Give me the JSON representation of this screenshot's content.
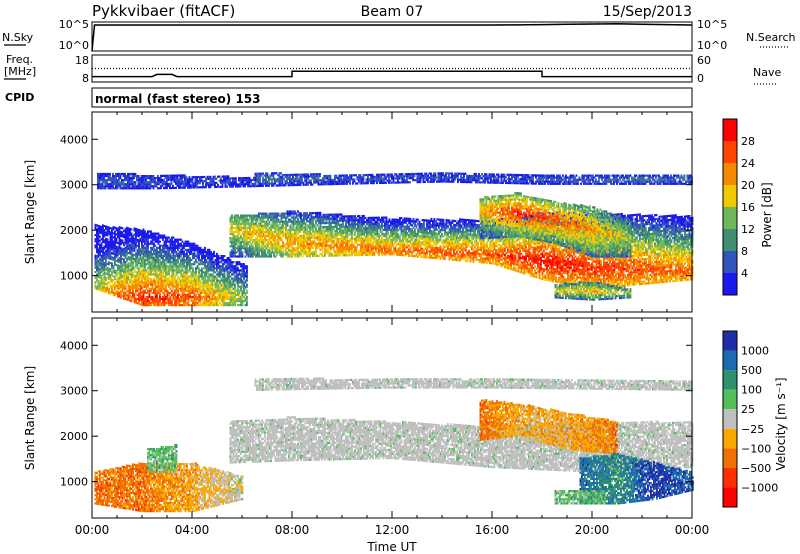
{
  "header": {
    "station": "Pykkvibaer (fitACF)",
    "beam": "Beam 07",
    "date": "15/Sep/2013",
    "cpid_label": "CPID",
    "cpid_value": "normal (fast stereo) 153"
  },
  "chart_data": [
    {
      "type": "line",
      "panel": "noise",
      "left_label": "N.Sky",
      "right_label": "N.Search",
      "left_ticks": [
        "10^5",
        "10^0"
      ],
      "right_ticks": [
        "10^5",
        "10^0"
      ],
      "yscale": "log",
      "ylim": [
        1,
        100000
      ],
      "series": [
        {
          "name": "N.Sky",
          "style": "solid",
          "x": [
            0,
            0.1,
            1,
            2,
            4,
            6,
            8,
            10,
            12,
            14,
            16,
            17,
            18,
            19,
            20,
            21,
            22,
            23,
            24
          ],
          "y": [
            1,
            30000,
            30000,
            30000,
            30000,
            30000,
            30000,
            30000,
            30000,
            30000,
            30000,
            32000,
            35000,
            40000,
            45000,
            50000,
            40000,
            35000,
            30000
          ]
        },
        {
          "name": "N.Search",
          "style": "dotted",
          "x": [
            0.1,
            6,
            12,
            16,
            17,
            18,
            19,
            20,
            21,
            22,
            23,
            24
          ],
          "y": [
            28000,
            28000,
            28000,
            28000,
            30000,
            33000,
            38000,
            42000,
            46000,
            38000,
            33000,
            28000
          ]
        }
      ]
    },
    {
      "type": "line",
      "panel": "frequency",
      "left_label": "Freq. [MHz]",
      "right_label": "Nave",
      "left_ticks": [
        "18",
        "8"
      ],
      "right_ticks": [
        "60",
        "0"
      ],
      "ylim": [
        8,
        18
      ],
      "series": [
        {
          "name": "Freq.",
          "style": "solid",
          "x": [
            0,
            2.4,
            2.6,
            3.2,
            3.4,
            8,
            8,
            18,
            18,
            24
          ],
          "y": [
            10,
            10,
            10.8,
            10.8,
            10,
            10,
            12,
            12,
            10,
            10
          ]
        },
        {
          "name": "Nave",
          "style": "dotted",
          "x": [
            0,
            24
          ],
          "y": [
            13,
            13
          ]
        }
      ]
    },
    {
      "type": "heatmap",
      "panel": "power",
      "ylabel": "Slant Range [km]",
      "yticks": [
        1000,
        2000,
        3000,
        4000
      ],
      "ylim": [
        200,
        4600
      ],
      "xlim": [
        0,
        24
      ],
      "colorbar_label": "Power [dB]",
      "colorbar_ticks": [
        4,
        8,
        12,
        16,
        20,
        24,
        28
      ],
      "colorbar_range": [
        0,
        32
      ],
      "colors": [
        "#1a1aee",
        "#3355bb",
        "#3f8f70",
        "#6fb85a",
        "#f2c800",
        "#f58a00",
        "#ff4500",
        "#ff0000"
      ],
      "regions": [
        {
          "x": [
            0.1,
            2,
            4,
            6.2
          ],
          "y0": [
            700,
            330,
            330,
            330
          ],
          "y1": [
            2100,
            2000,
            1700,
            1200
          ],
          "peak": [
            450,
            500,
            500,
            500
          ],
          "level": [
            22,
            28,
            26,
            14
          ]
        },
        {
          "x": [
            5.5,
            8,
            12,
            16,
            18,
            20,
            24
          ],
          "y0": [
            1400,
            1400,
            1450,
            1250,
            900,
            700,
            900
          ],
          "y1": [
            2300,
            2400,
            2250,
            2200,
            2400,
            2350,
            2300
          ],
          "peak": [
            2000,
            1700,
            1550,
            1450,
            1300,
            1150,
            1100
          ],
          "level": [
            18,
            22,
            24,
            26,
            30,
            28,
            24
          ]
        },
        {
          "x": [
            15.5,
            17,
            18.5,
            20,
            21.5
          ],
          "y0": [
            1800,
            1850,
            1700,
            1400,
            1400
          ],
          "y1": [
            2700,
            2800,
            2600,
            2500,
            2200
          ],
          "peak": [
            2400,
            2350,
            2200,
            2000,
            1800
          ],
          "level": [
            20,
            28,
            26,
            22,
            16
          ]
        },
        {
          "x": [
            6.5,
            10,
            14,
            18,
            22,
            24
          ],
          "y0": [
            2950,
            3000,
            3050,
            3000,
            3000,
            3000
          ],
          "y1": [
            3250,
            3200,
            3250,
            3200,
            3200,
            3200
          ],
          "peak": [
            3100,
            3100,
            3150,
            3100,
            3100,
            3100
          ],
          "level": [
            8,
            6,
            6,
            6,
            8,
            8
          ]
        },
        {
          "x": [
            0.2,
            2.5,
            6.5
          ],
          "y0": [
            2900,
            2900,
            2950
          ],
          "y1": [
            3250,
            3200,
            3150
          ],
          "peak": [
            3050,
            3050,
            3050
          ],
          "level": [
            6,
            5,
            5
          ]
        },
        {
          "x": [
            18.5,
            20,
            21.5
          ],
          "y0": [
            500,
            450,
            500
          ],
          "y1": [
            800,
            850,
            700
          ],
          "peak": [
            650,
            650,
            600
          ],
          "level": [
            18,
            20,
            16
          ]
        }
      ]
    },
    {
      "type": "heatmap",
      "panel": "velocity",
      "ylabel": "Slant Range [km]",
      "yticks": [
        1000,
        2000,
        3000,
        4000
      ],
      "ylim": [
        200,
        4600
      ],
      "xlim": [
        0,
        24
      ],
      "xticks": [
        "00:00",
        "04:00",
        "08:00",
        "12:00",
        "16:00",
        "20:00",
        "00:00"
      ],
      "xlabel": "Time UT",
      "colorbar_label": "Velocity [m s⁻¹]",
      "colorbar_ticks": [
        "1000",
        "500",
        "100",
        "25",
        "−25",
        "−100",
        "−500",
        "−1000"
      ],
      "colors": [
        "#1e2ca8",
        "#1c6ab0",
        "#2f8f6f",
        "#55c05a",
        "#bfbfbf",
        "#f8a800",
        "#f07000",
        "#ff3000",
        "#ff0000"
      ],
      "regions": [
        {
          "x": [
            0.1,
            2,
            4,
            6
          ],
          "y0": [
            500,
            330,
            330,
            600
          ],
          "y1": [
            1200,
            1400,
            1400,
            1100
          ],
          "peak": [
            700,
            700,
            800,
            850
          ],
          "cls": [
            6,
            6,
            5,
            4
          ]
        },
        {
          "x": [
            2.2,
            3.4
          ],
          "y0": [
            1200,
            1200
          ],
          "y1": [
            1700,
            1800
          ],
          "peak": [
            1450,
            1500
          ],
          "cls": [
            3,
            3
          ]
        },
        {
          "x": [
            5.5,
            8,
            12,
            16,
            20,
            24
          ],
          "y0": [
            1400,
            1450,
            1500,
            1300,
            1200,
            1300
          ],
          "y1": [
            2300,
            2400,
            2300,
            2200,
            2300,
            2300
          ],
          "peak": [
            1900,
            1850,
            1800,
            1750,
            1700,
            1700
          ],
          "cls": [
            4,
            4,
            4,
            4,
            4,
            4
          ]
        },
        {
          "x": [
            6.5,
            12,
            16,
            24
          ],
          "y0": [
            3000,
            3050,
            3050,
            3000
          ],
          "y1": [
            3250,
            3250,
            3250,
            3200
          ],
          "peak": [
            3100,
            3150,
            3150,
            3100
          ],
          "cls": [
            4,
            4,
            4,
            4
          ]
        },
        {
          "x": [
            15.5,
            17,
            19,
            21
          ],
          "y0": [
            1900,
            2000,
            1700,
            1600
          ],
          "y1": [
            2800,
            2700,
            2500,
            2300
          ],
          "peak": [
            2300,
            2300,
            2100,
            1900
          ],
          "cls": [
            6,
            5,
            5,
            6
          ]
        },
        {
          "x": [
            19.5,
            21,
            22.5,
            24
          ],
          "y0": [
            500,
            500,
            600,
            800
          ],
          "y1": [
            1500,
            1600,
            1400,
            1200
          ],
          "peak": [
            1000,
            1000,
            1000,
            1000
          ],
          "cls": [
            1,
            2,
            0,
            1
          ]
        },
        {
          "x": [
            18.5,
            20.5
          ],
          "y0": [
            500,
            500
          ],
          "y1": [
            800,
            800
          ],
          "peak": [
            650,
            650
          ],
          "cls": [
            3,
            3
          ]
        }
      ]
    }
  ]
}
